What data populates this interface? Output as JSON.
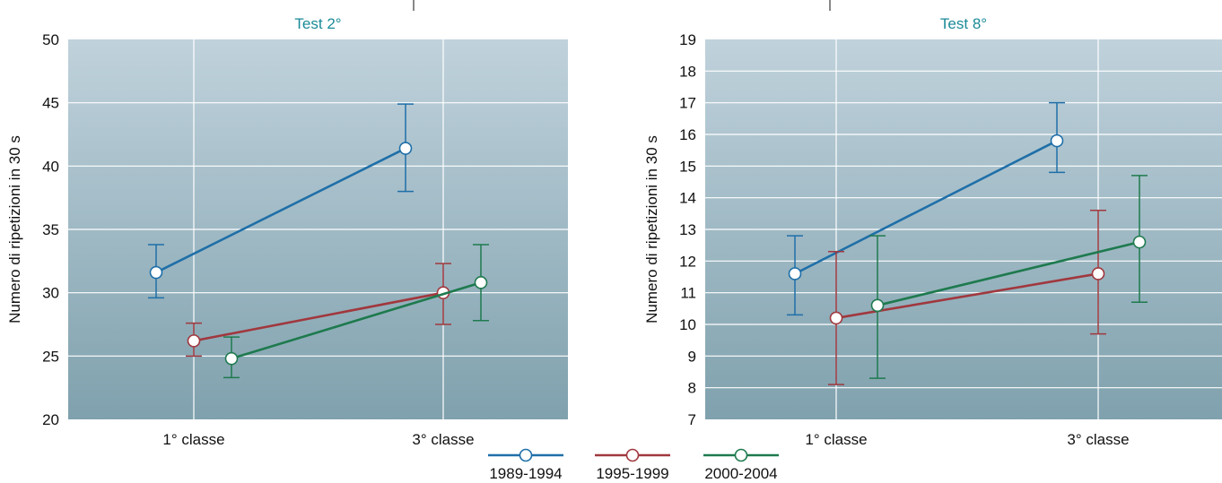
{
  "chart_data": [
    {
      "type": "line",
      "title": "Test 2°",
      "ylabel": "Numero di ripetizioni in 30 s",
      "xlabel": "",
      "categories": [
        "1° classe",
        "3° classe"
      ],
      "ylim": [
        20,
        50
      ],
      "yticks": [
        20,
        25,
        30,
        35,
        40,
        45,
        50
      ],
      "grid": true,
      "series": [
        {
          "name": "1989-1994",
          "color": "#1f6fa8",
          "offset": -1,
          "values": [
            31.6,
            41.4
          ],
          "err_low": [
            29.6,
            38.0
          ],
          "err_high": [
            33.8,
            44.9
          ]
        },
        {
          "name": "1995-1999",
          "color": "#a0383e",
          "offset": 0,
          "values": [
            26.2,
            30.0
          ],
          "err_low": [
            25.0,
            27.5
          ],
          "err_high": [
            27.6,
            32.3
          ]
        },
        {
          "name": "2000-2004",
          "color": "#1e7a4e",
          "offset": 1,
          "values": [
            24.8,
            30.8
          ],
          "err_low": [
            23.3,
            27.8
          ],
          "err_high": [
            26.5,
            33.8
          ]
        }
      ]
    },
    {
      "type": "line",
      "title": "Test 8°",
      "ylabel": "Numero di ripetizioni in 30 s",
      "xlabel": "",
      "categories": [
        "1° classe",
        "3° classe"
      ],
      "ylim": [
        7,
        19
      ],
      "yticks": [
        7,
        8,
        9,
        10,
        11,
        12,
        13,
        14,
        15,
        16,
        17,
        18,
        19
      ],
      "grid": true,
      "series": [
        {
          "name": "1989-1994",
          "color": "#1f6fa8",
          "offset": -1,
          "values": [
            11.6,
            15.8
          ],
          "err_low": [
            10.3,
            14.8
          ],
          "err_high": [
            12.8,
            17.0
          ]
        },
        {
          "name": "1995-1999",
          "color": "#a0383e",
          "offset": 0,
          "values": [
            10.2,
            11.6
          ],
          "err_low": [
            8.1,
            9.7
          ],
          "err_high": [
            12.3,
            13.6
          ]
        },
        {
          "name": "2000-2004",
          "color": "#1e7a4e",
          "offset": 1,
          "values": [
            10.6,
            12.6
          ],
          "err_low": [
            8.3,
            10.7
          ],
          "err_high": [
            12.8,
            14.7
          ]
        }
      ]
    }
  ],
  "legend": {
    "placement": "bottom-center",
    "items": [
      {
        "label": "1989-1994",
        "color": "#1f6fa8"
      },
      {
        "label": "1995-1999",
        "color": "#a0383e"
      },
      {
        "label": "2000-2004",
        "color": "#1e7a4e"
      }
    ]
  }
}
